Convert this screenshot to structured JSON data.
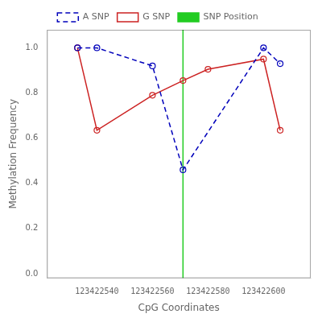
{
  "chart_data": {
    "type": "line",
    "xlabel": "CpG Coordinates",
    "ylabel": "Methylation Frequency",
    "xlim": [
      123422522,
      123422617
    ],
    "ylim": [
      -0.02,
      1.08
    ],
    "xticks": [
      123422540,
      123422560,
      123422580,
      123422600
    ],
    "yticks": [
      {
        "value": 0.0,
        "label": "0.0"
      },
      0.2,
      0.4,
      0.6,
      0.8,
      {
        "value": 1.0,
        "label": "1.0"
      }
    ],
    "grid": false,
    "legend": "top",
    "series": [
      {
        "name": "A SNP",
        "color": "#0000BB",
        "marker": "o",
        "line_style": "dashed",
        "x": [
          123422533,
          123422540,
          123422560,
          123422571,
          123422600,
          123422606
        ],
        "values": [
          1.0,
          1.0,
          0.92,
          0.46,
          1.0,
          0.93
        ]
      },
      {
        "name": "G SNP",
        "color": "#CC2222",
        "marker": "o",
        "line_style": "solid",
        "x": [
          123422533,
          123422540,
          123422560,
          123422571,
          123422580,
          123422600,
          123422606
        ],
        "values": [
          1.0,
          0.635,
          0.79,
          0.855,
          0.905,
          0.95,
          0.635
        ]
      },
      {
        "name": "SNP Position",
        "type": "vline",
        "color": "#22CC22",
        "line_style": "solid",
        "x": [
          123422571
        ]
      }
    ]
  }
}
